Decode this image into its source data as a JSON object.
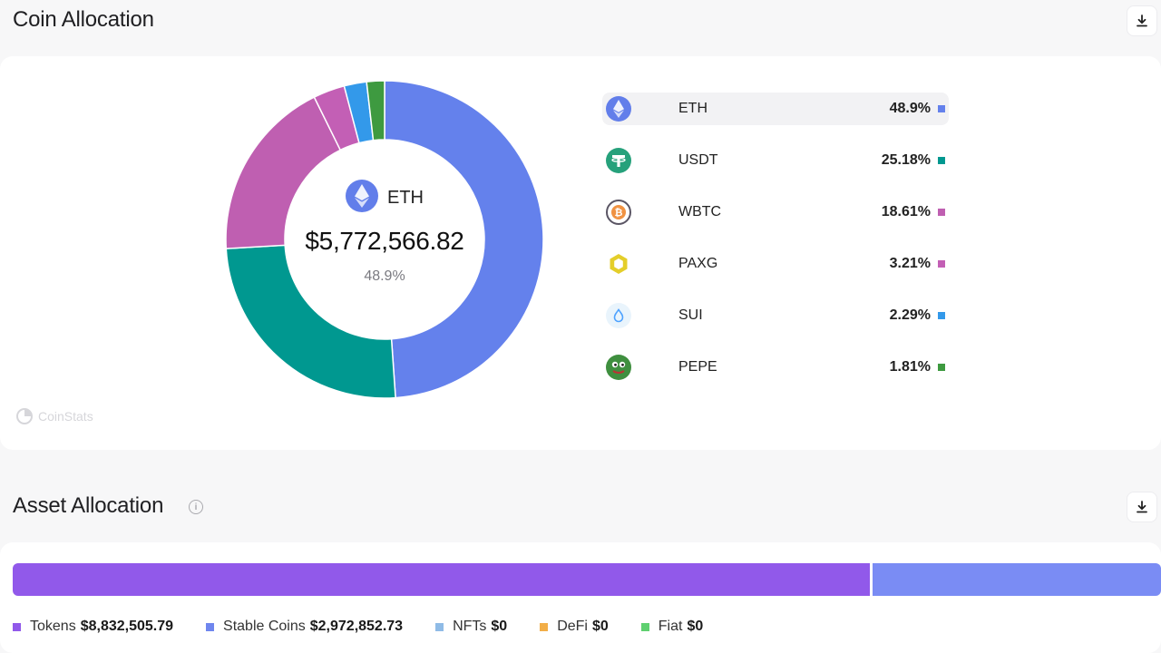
{
  "coin_allocation": {
    "title": "Coin Allocation",
    "download_icon": "download-icon",
    "center": {
      "symbol": "ETH",
      "value": "$5,772,566.82",
      "percent": "48.9%"
    },
    "watermark": "CoinStats",
    "coins": [
      {
        "symbol": "ETH",
        "percent_label": "48.9%",
        "percent": 48.9,
        "color": "#6481ec",
        "icon": "eth-icon",
        "active": true
      },
      {
        "symbol": "USDT",
        "percent_label": "25.18%",
        "percent": 25.18,
        "color": "#009890",
        "icon": "usdt-icon",
        "active": false
      },
      {
        "symbol": "WBTC",
        "percent_label": "18.61%",
        "percent": 18.61,
        "color": "#bf5fb1",
        "icon": "wbtc-icon",
        "active": false
      },
      {
        "symbol": "PAXG",
        "percent_label": "3.21%",
        "percent": 3.21,
        "color": "#c35fb5",
        "icon": "paxg-icon",
        "active": false
      },
      {
        "symbol": "SUI",
        "percent_label": "2.29%",
        "percent": 2.29,
        "color": "#3399ea",
        "icon": "sui-icon",
        "active": false
      },
      {
        "symbol": "PEPE",
        "percent_label": "1.81%",
        "percent": 1.81,
        "color": "#3e9a40",
        "icon": "pepe-icon",
        "active": false
      }
    ]
  },
  "asset_allocation": {
    "title": "Asset Allocation",
    "info_icon": "info-icon",
    "download_icon": "download-icon",
    "bar": [
      {
        "category": "Tokens",
        "fraction": 0.7481,
        "color": "#9159ea"
      },
      {
        "category": "Stable Coins",
        "fraction": 0.2519,
        "color": "#7a8cf4"
      }
    ],
    "legend": [
      {
        "label": "Tokens",
        "value": "$8,832,505.79",
        "color": "#9159ea"
      },
      {
        "label": "Stable Coins",
        "value": "$2,972,852.73",
        "color": "#6f86ee"
      },
      {
        "label": "NFTs",
        "value": "$0",
        "color": "#8fbbe6"
      },
      {
        "label": "DeFi",
        "value": "$0",
        "color": "#f2ae48"
      },
      {
        "label": "Fiat",
        "value": "$0",
        "color": "#5fd070"
      }
    ]
  }
}
